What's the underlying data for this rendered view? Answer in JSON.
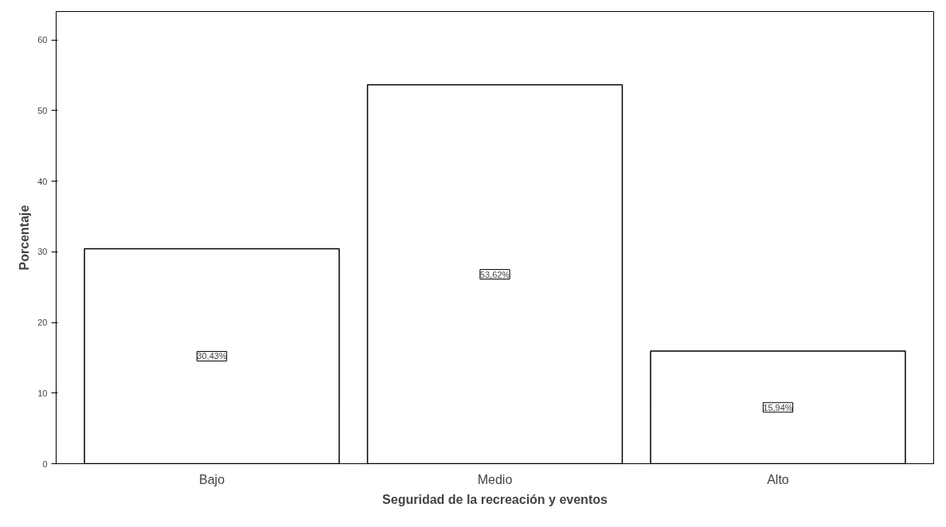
{
  "chart_data": {
    "type": "bar",
    "xlabel": "Seguridad de la recreación y eventos",
    "ylabel": "Porcentaje",
    "categories": [
      "Bajo",
      "Medio",
      "Alto"
    ],
    "values": [
      30.43,
      53.62,
      15.94
    ],
    "value_labels": [
      "30,43%",
      "53,62%",
      "15,94%"
    ],
    "color": "#ffffff",
    "ylim": [
      0,
      64
    ],
    "yticks": [
      0,
      10,
      20,
      30,
      40,
      50,
      60
    ],
    "grid": false
  }
}
